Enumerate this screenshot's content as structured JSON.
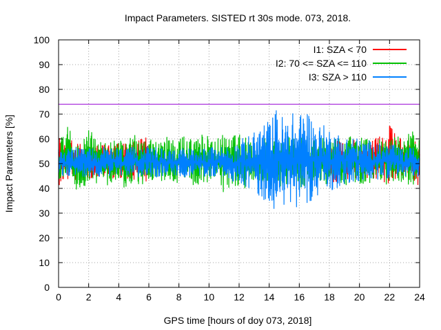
{
  "chart_data": {
    "type": "line",
    "title": "Impact Parameters. SISTED rt 30s mode. 073, 2018.",
    "xlabel": "GPS time [hours of doy 073, 2018]",
    "ylabel": "Impact Parameters [%]",
    "xlim": [
      0,
      24
    ],
    "ylim": [
      0,
      100
    ],
    "xticks": [
      0,
      2,
      4,
      6,
      8,
      10,
      12,
      14,
      16,
      18,
      20,
      22,
      24
    ],
    "yticks": [
      0,
      10,
      20,
      30,
      40,
      50,
      60,
      70,
      80,
      90,
      100
    ],
    "grid": true,
    "legend_position": "top-right",
    "reference_line": {
      "y": 74,
      "color": "#9400d3"
    },
    "series": [
      {
        "name": "I1: SZA < 70",
        "color": "#ff0000",
        "segments": [
          [
            0,
            6
          ],
          [
            18,
            24
          ]
        ],
        "x": [
          0.0,
          0.5,
          1.0,
          1.5,
          2.0,
          2.5,
          3.0,
          3.5,
          4.0,
          4.5,
          5.0,
          5.5,
          6.0,
          6.5,
          7.0,
          7.5,
          8.0,
          8.5,
          9.0,
          9.5,
          10.0,
          10.5,
          11.0,
          11.5,
          12.0,
          12.5,
          13.0,
          13.5,
          14.0,
          14.5,
          15.0,
          15.5,
          16.0,
          16.5,
          17.0,
          17.5,
          18.0,
          18.5,
          19.0,
          19.5,
          20.0,
          20.5,
          21.0,
          21.5,
          22.0,
          22.5,
          23.0,
          23.5,
          24.0
        ],
        "max": [
          62,
          59,
          60,
          58,
          61,
          58,
          60,
          57,
          59,
          58,
          61,
          60,
          64,
          61,
          67,
          62,
          60,
          61,
          59,
          60,
          60,
          59,
          61,
          58,
          59,
          58,
          59,
          60,
          58,
          60,
          59,
          61,
          59,
          58,
          60,
          59,
          59,
          60,
          59,
          61,
          58,
          59,
          61,
          64,
          66,
          62,
          60,
          61,
          58
        ],
        "min": [
          37,
          42,
          43,
          44,
          44,
          43,
          44,
          44,
          44,
          44,
          43,
          43,
          42,
          41,
          38,
          40,
          41,
          42,
          44,
          43,
          44,
          43,
          44,
          43,
          44,
          44,
          43,
          44,
          43,
          44,
          44,
          44,
          43,
          44,
          44,
          44,
          43,
          42,
          44,
          43,
          44,
          43,
          44,
          43,
          41,
          42,
          43,
          44,
          40
        ]
      },
      {
        "name": "I2: 70 <= SZA <= 110",
        "color": "#00c000",
        "segments": [
          [
            0,
            24
          ]
        ],
        "x": [
          0.0,
          0.5,
          1.0,
          1.5,
          2.0,
          2.5,
          3.0,
          3.5,
          4.0,
          4.5,
          5.0,
          5.5,
          6.0,
          6.5,
          7.0,
          7.5,
          8.0,
          8.5,
          9.0,
          9.5,
          10.0,
          10.5,
          11.0,
          11.5,
          12.0,
          12.5,
          13.0,
          13.5,
          14.0,
          14.5,
          15.0,
          15.5,
          16.0,
          16.5,
          17.0,
          17.5,
          18.0,
          18.5,
          19.0,
          19.5,
          20.0,
          20.5,
          21.0,
          21.5,
          22.0,
          22.5,
          23.0,
          23.5,
          24.0
        ],
        "max": [
          58,
          66,
          61,
          60,
          64,
          61,
          60,
          59,
          61,
          60,
          62,
          61,
          60,
          61,
          62,
          60,
          61,
          62,
          60,
          63,
          61,
          60,
          62,
          61,
          62,
          61,
          60,
          61,
          60,
          61,
          60,
          61,
          60,
          62,
          60,
          61,
          60,
          61,
          60,
          62,
          61,
          60,
          61,
          60,
          61,
          62,
          63,
          64,
          60
        ],
        "min": [
          41,
          43,
          40,
          38,
          41,
          42,
          40,
          42,
          41,
          40,
          42,
          41,
          42,
          44,
          42,
          43,
          41,
          42,
          41,
          40,
          42,
          41,
          38,
          41,
          39,
          40,
          41,
          42,
          40,
          41,
          40,
          41,
          40,
          41,
          42,
          41,
          41,
          42,
          41,
          42,
          41,
          42,
          40,
          41,
          42,
          41,
          42,
          41,
          42
        ]
      },
      {
        "name": "I3: SZA > 110",
        "color": "#0080ff",
        "segments": [
          [
            0,
            24
          ]
        ],
        "x": [
          0.0,
          0.5,
          1.0,
          1.5,
          2.0,
          2.5,
          3.0,
          3.5,
          4.0,
          4.5,
          5.0,
          5.5,
          6.0,
          6.5,
          7.0,
          7.5,
          8.0,
          8.5,
          9.0,
          9.5,
          10.0,
          10.5,
          11.0,
          11.5,
          12.0,
          12.5,
          13.0,
          13.5,
          14.0,
          14.5,
          15.0,
          15.5,
          16.0,
          16.5,
          17.0,
          17.5,
          18.0,
          18.5,
          19.0,
          19.5,
          20.0,
          20.5,
          21.0,
          21.5,
          22.0,
          22.5,
          23.0,
          23.5,
          24.0
        ],
        "max": [
          57,
          56,
          57,
          56,
          57,
          56,
          57,
          56,
          57,
          56,
          57,
          58,
          57,
          57,
          56,
          57,
          56,
          57,
          56,
          57,
          57,
          56,
          58,
          57,
          60,
          61,
          63,
          67,
          68,
          73,
          69,
          71,
          70,
          74,
          67,
          66,
          65,
          63,
          61,
          62,
          60,
          60,
          59,
          58,
          59,
          57,
          56,
          57,
          56
        ],
        "min": [
          44,
          45,
          44,
          45,
          44,
          45,
          44,
          45,
          45,
          44,
          45,
          44,
          45,
          44,
          45,
          44,
          45,
          44,
          45,
          44,
          44,
          45,
          44,
          43,
          42,
          40,
          38,
          35,
          33,
          31,
          32,
          33,
          32,
          34,
          35,
          36,
          38,
          40,
          41,
          41,
          42,
          43,
          43,
          44,
          44,
          45,
          44,
          45,
          44
        ]
      }
    ]
  }
}
